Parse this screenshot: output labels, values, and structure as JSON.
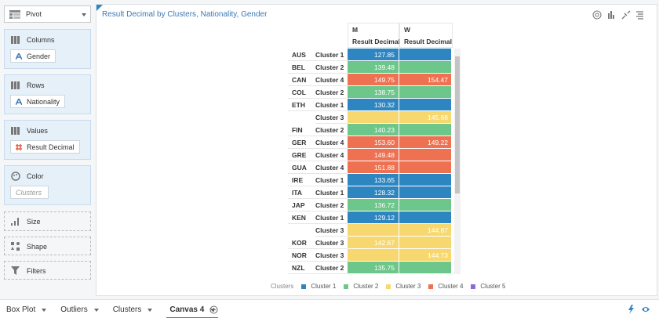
{
  "sidebar": {
    "pivot": "Pivot",
    "sections": [
      {
        "title": "Columns",
        "item": "Gender"
      },
      {
        "title": "Rows",
        "item": "Nationality"
      },
      {
        "title": "Values",
        "item": "Result Decimal"
      }
    ],
    "color": {
      "title": "Color",
      "placeholder": "Clusters"
    },
    "size": "Size",
    "shape": "Shape",
    "filters": "Filters"
  },
  "canvas": {
    "title": "Result Decimal by Clusters, Nationality, Gender",
    "table": {
      "columns": [
        {
          "header": "M",
          "measure": "Result Decimal"
        },
        {
          "header": "W",
          "measure": "Result Decimal"
        }
      ],
      "rows": [
        {
          "nationality": "AUS",
          "cluster": "Cluster 1",
          "m": "127.85",
          "w": null
        },
        {
          "nationality": "BEL",
          "cluster": "Cluster 2",
          "m": "139.48",
          "w": null
        },
        {
          "nationality": "CAN",
          "cluster": "Cluster 4",
          "m": "149.75",
          "w": "154.47"
        },
        {
          "nationality": "COL",
          "cluster": "Cluster 2",
          "m": "138.75",
          "w": null
        },
        {
          "nationality": "ETH",
          "cluster": "Cluster 1",
          "m": "130.32",
          "w": null
        },
        {
          "nationality": null,
          "cluster": "Cluster 3",
          "m": null,
          "w": "145.68"
        },
        {
          "nationality": "FIN",
          "cluster": "Cluster 2",
          "m": "140.23",
          "w": null
        },
        {
          "nationality": "GER",
          "cluster": "Cluster 4",
          "m": "153.60",
          "w": "149.22"
        },
        {
          "nationality": "GRE",
          "cluster": "Cluster 4",
          "m": "149.48",
          "w": null
        },
        {
          "nationality": "GUA",
          "cluster": "Cluster 4",
          "m": "151.88",
          "w": null
        },
        {
          "nationality": "IRE",
          "cluster": "Cluster 1",
          "m": "133.65",
          "w": null
        },
        {
          "nationality": "ITA",
          "cluster": "Cluster 1",
          "m": "128.32",
          "w": null
        },
        {
          "nationality": "JAP",
          "cluster": "Cluster 2",
          "m": "136.72",
          "w": null
        },
        {
          "nationality": "KEN",
          "cluster": "Cluster 1",
          "m": "129.12",
          "w": null
        },
        {
          "nationality": null,
          "cluster": "Cluster 3",
          "m": null,
          "w": "144.87"
        },
        {
          "nationality": "KOR",
          "cluster": "Cluster 3",
          "m": "142.67",
          "w": null
        },
        {
          "nationality": "NOR",
          "cluster": "Cluster 3",
          "m": null,
          "w": "144.73"
        },
        {
          "nationality": "NZL",
          "cluster": "Cluster 2",
          "m": "135.75",
          "w": null
        }
      ]
    },
    "legend": {
      "title": "Clusters",
      "items": [
        {
          "name": "Cluster 1",
          "color": "#2e86c1"
        },
        {
          "name": "Cluster 2",
          "color": "#6dc68a"
        },
        {
          "name": "Cluster 3",
          "color": "#f7d870"
        },
        {
          "name": "Cluster 4",
          "color": "#ee7152"
        },
        {
          "name": "Cluster 5",
          "color": "#8b6bd3"
        }
      ]
    }
  },
  "tabs": [
    "Box Plot",
    "Outliers",
    "Clusters",
    "Canvas 4"
  ],
  "active_tab": 3
}
